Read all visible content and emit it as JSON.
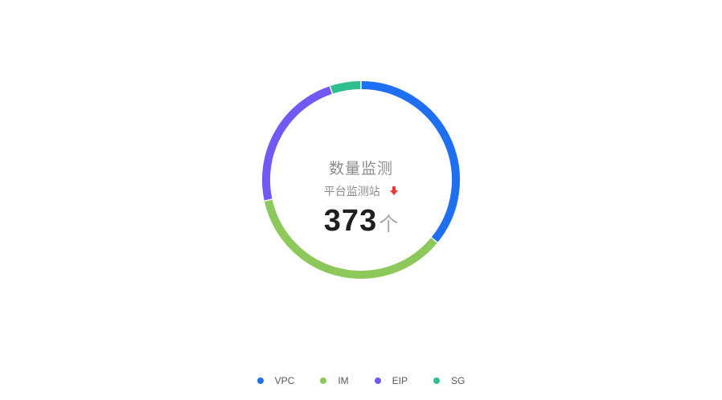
{
  "chart_data": {
    "type": "pie",
    "title": "数量监测",
    "subtitle": "平台监测站",
    "total": "373",
    "unit": "个",
    "trend": "down",
    "legend_position": "bottom",
    "categories": [
      "VPC",
      "IM",
      "EIP",
      "SG"
    ],
    "values": [
      134,
      133,
      87,
      19
    ],
    "colors": [
      "#1f6ff2",
      "#8cc85a",
      "#7358f5",
      "#2ebf8f"
    ],
    "trend_color": "#e5383b"
  }
}
